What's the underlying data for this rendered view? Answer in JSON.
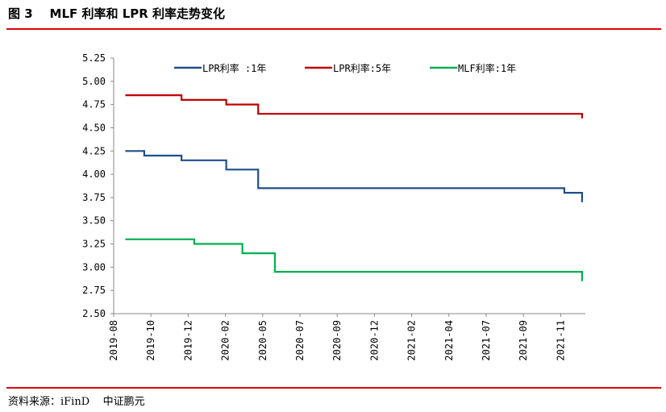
{
  "title": "图 3    MLF 利率和 LPR 利率走势变化",
  "source": "资料来源：iFinD    中证鹏元",
  "chart_data": {
    "type": "line",
    "step": true,
    "title": "",
    "xlabel": "",
    "ylabel": "",
    "ylim": [
      2.5,
      5.25
    ],
    "yticks": [
      "5.25",
      "5.00",
      "4.75",
      "4.50",
      "4.25",
      "4.00",
      "3.75",
      "3.50",
      "3.25",
      "3.00",
      "2.75",
      "2.50"
    ],
    "xticks": [
      "2019-08",
      "2019-10",
      "2019-12",
      "2020-02",
      "2020-05",
      "2020-07",
      "2020-09",
      "2020-12",
      "2021-02",
      "2021-04",
      "2021-07",
      "2021-09",
      "2021-11"
    ],
    "grid": false,
    "legend": "top",
    "series": [
      {
        "name": "LPR利率 :1年",
        "color": "#1f4e8c",
        "points": [
          [
            "2019-08-20",
            4.25
          ],
          [
            "2019-09-20",
            4.2
          ],
          [
            "2019-11-20",
            4.15
          ],
          [
            "2020-02-03",
            4.05
          ],
          [
            "2020-04-20",
            3.85
          ],
          [
            "2021-11-07",
            3.8
          ],
          [
            "2021-12-06",
            3.8
          ],
          [
            "2021-12-06",
            3.7
          ]
        ]
      },
      {
        "name": "LPR利率:5年",
        "color": "#c00000",
        "points": [
          [
            "2019-08-20",
            4.85
          ],
          [
            "2019-11-20",
            4.8
          ],
          [
            "2020-02-03",
            4.75
          ],
          [
            "2020-04-20",
            4.65
          ],
          [
            "2021-12-06",
            4.65
          ],
          [
            "2021-12-06",
            4.6
          ]
        ]
      },
      {
        "name": "MLF利率:1年",
        "color": "#00b050",
        "points": [
          [
            "2019-08-20",
            3.3
          ],
          [
            "2019-12-11",
            3.25
          ],
          [
            "2020-03-13",
            3.15
          ],
          [
            "2020-05-21",
            2.95
          ],
          [
            "2021-12-06",
            2.95
          ],
          [
            "2021-12-06",
            2.85
          ]
        ]
      }
    ]
  }
}
